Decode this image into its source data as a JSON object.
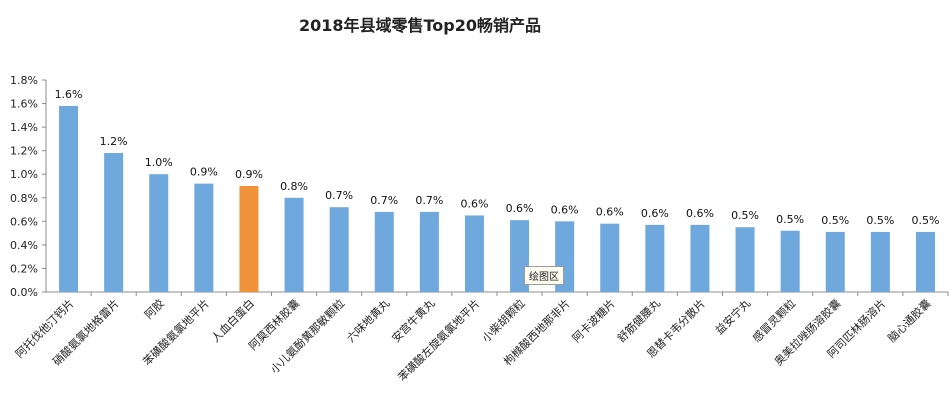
{
  "chart_data": {
    "type": "bar",
    "title": "2018年县域零售Top20畅销产品",
    "xlabel": "",
    "ylabel": "",
    "ylim": [
      0,
      0.018
    ],
    "yticks": [
      "0.0%",
      "0.2%",
      "0.4%",
      "0.6%",
      "0.8%",
      "1.0%",
      "1.2%",
      "1.4%",
      "1.6%",
      "1.8%"
    ],
    "grid": false,
    "categories": [
      "阿托伐他汀钙片",
      "硝酸氨氯地格雷片",
      "阿胶",
      "苯磺酸氨氯地平片",
      "人血白蛋白",
      "阿莫西林胶囊",
      "小儿氨酚黄那敏颗粒",
      "六味地黄丸",
      "安宫牛黄丸",
      "苯磺酸左旋氨氯地平片",
      "小柴胡颗粒",
      "枸橼酸西地那非片",
      "阿卡波糖片",
      "舒筋健腰丸",
      "恩替卡韦分散片",
      "益安宁丸",
      "感冒灵颗粒",
      "奥美拉唑肠溶胶囊",
      "阿司匹林肠溶片",
      "脑心通胶囊"
    ],
    "values": [
      0.0158,
      0.0118,
      0.01,
      0.0092,
      0.009,
      0.008,
      0.0072,
      0.0068,
      0.0068,
      0.0065,
      0.0061,
      0.006,
      0.0058,
      0.0057,
      0.0057,
      0.0055,
      0.0052,
      0.0051,
      0.0051,
      0.0051
    ],
    "data_labels": [
      "1.6%",
      "1.2%",
      "1.0%",
      "0.9%",
      "0.9%",
      "0.8%",
      "0.7%",
      "0.7%",
      "0.7%",
      "0.6%",
      "0.6%",
      "0.6%",
      "0.6%",
      "0.6%",
      "0.6%",
      "0.5%",
      "0.5%",
      "0.5%",
      "0.5%",
      "0.5%"
    ],
    "highlight_index": 4,
    "colors": {
      "bar": "#6fa8dc",
      "highlight": "#f0923a",
      "axis": "#8c8c8c"
    }
  },
  "tooltip": {
    "text": "绘图区"
  }
}
